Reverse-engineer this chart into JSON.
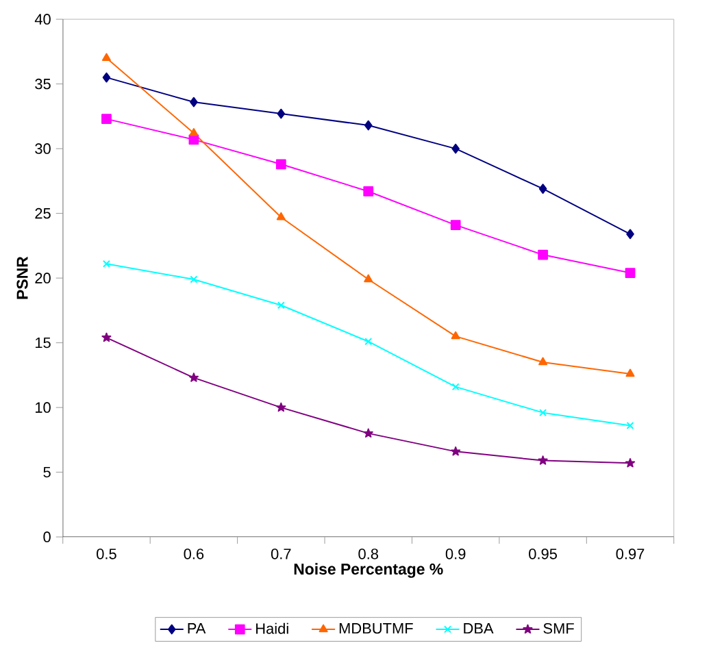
{
  "chart_data": {
    "type": "line",
    "xlabel": "Noise Percentage %",
    "ylabel": "PSNR",
    "categories": [
      "0.5",
      "0.6",
      "0.7",
      "0.8",
      "0.9",
      "0.95",
      "0.97"
    ],
    "series": [
      {
        "name": "PA",
        "color": "#000080",
        "marker": "diamond",
        "values": [
          35.5,
          33.6,
          32.7,
          31.8,
          30.0,
          26.9,
          23.4
        ]
      },
      {
        "name": "Haidi",
        "color": "#ff00ff",
        "marker": "square",
        "values": [
          32.3,
          30.7,
          28.8,
          26.7,
          24.1,
          21.8,
          20.4
        ]
      },
      {
        "name": "MDBUTMF",
        "color": "#ff6600",
        "marker": "triangle",
        "values": [
          37.0,
          31.2,
          24.7,
          19.9,
          15.5,
          13.5,
          12.6
        ]
      },
      {
        "name": "DBA",
        "color": "#00ffff",
        "marker": "cross",
        "values": [
          21.1,
          19.9,
          17.9,
          15.1,
          11.6,
          9.6,
          8.6
        ]
      },
      {
        "name": "SMF",
        "color": "#800080",
        "marker": "star",
        "values": [
          15.4,
          12.3,
          10.0,
          8.0,
          6.6,
          5.9,
          5.7
        ]
      }
    ],
    "ylim": [
      0,
      40
    ],
    "yticks": [
      0,
      5,
      10,
      15,
      20,
      25,
      30,
      35,
      40
    ],
    "grid": false,
    "legend": "bottom",
    "line_style": "solid"
  }
}
